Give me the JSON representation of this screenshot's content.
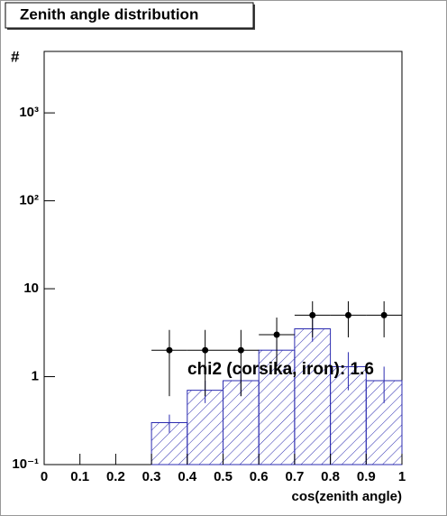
{
  "chart_data": {
    "type": "histogram",
    "title": "Zenith angle distribution",
    "xlabel": "cos(zenith angle)",
    "ylabel": "#",
    "annotation": "chi2 (corsika, iron): 1.6",
    "bins": [
      0.3,
      0.4,
      0.5,
      0.6,
      0.7,
      0.8,
      0.9,
      1.0
    ],
    "counts": [
      0.3,
      0.7,
      0.9,
      2,
      3.5,
      1.3,
      0.9
    ],
    "errors": [
      0.07,
      0.2,
      0.3,
      0.6,
      1,
      0.6,
      0.4
    ],
    "color": "#2b2bb0",
    "points": {
      "values": [
        2,
        2,
        2,
        3,
        5,
        5,
        5
      ],
      "errors": [
        1.4,
        1.4,
        1.4,
        1.7,
        2.2,
        2.2,
        2.2
      ],
      "color": "#000000"
    },
    "xlim": [
      0,
      1
    ],
    "ylim": [
      0.1,
      5000
    ],
    "log_y": true,
    "xticks": [
      0,
      0.1,
      0.2,
      0.3,
      0.4,
      0.5,
      0.6,
      0.7,
      0.8,
      0.9,
      1
    ],
    "yticks": [
      {
        "value": 0.1,
        "label": "10⁻¹"
      },
      1,
      10,
      {
        "value": 100,
        "label": "10²"
      },
      {
        "value": 1000,
        "label": "10³"
      }
    ]
  }
}
